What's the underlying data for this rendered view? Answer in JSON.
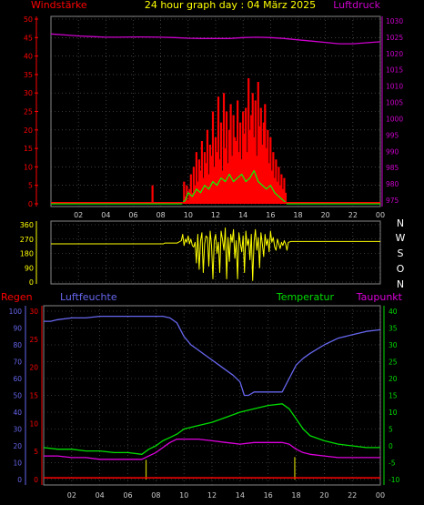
{
  "chart_data": [
    {
      "type": "line",
      "title": "24 hour graph day : 04 März 2025",
      "left_axis_label": "Windstärke",
      "right_axis_label": "Luftdruck",
      "left_ylim": [
        0,
        50
      ],
      "left_ticks": [
        "0",
        "5",
        "10",
        "15",
        "20",
        "25",
        "30",
        "35",
        "40",
        "45",
        "50"
      ],
      "right_ylim": [
        975,
        1030
      ],
      "right_ticks": [
        "975",
        "980",
        "985",
        "990",
        "995",
        "1000",
        "1005",
        "1010",
        "1015",
        "1020",
        "1025",
        "1030"
      ],
      "xlim": [
        0,
        24
      ],
      "x_ticks": [
        "02",
        "04",
        "06",
        "08",
        "10",
        "12",
        "14",
        "16",
        "18",
        "20",
        "22",
        "00"
      ],
      "grid": true,
      "colors": {
        "wind": "#ff0000",
        "gust_mean": "#00ff00",
        "pressure": "#cc00cc",
        "left_axis": "#ff0000",
        "right_axis": "#cc00cc",
        "title": "#ffff00"
      },
      "series": [
        {
          "key": "pressure",
          "axis": "right",
          "x": [
            0,
            1,
            2,
            3,
            4,
            5,
            6,
            7,
            8,
            9,
            10,
            11,
            12,
            13,
            14,
            15,
            16,
            17,
            18,
            19,
            20,
            21,
            22,
            23,
            24
          ],
          "y": [
            1026.0,
            1025.7,
            1025.4,
            1025.2,
            1025.0,
            1025.0,
            1025.1,
            1025.1,
            1025.0,
            1024.9,
            1024.7,
            1024.6,
            1024.6,
            1024.6,
            1024.9,
            1025.0,
            1024.9,
            1024.6,
            1024.2,
            1023.8,
            1023.4,
            1023.0,
            1023.0,
            1023.3,
            1023.6
          ]
        },
        {
          "key": "wind_gust",
          "axis": "left",
          "x": [
            0,
            7.3,
            7.4,
            7.5,
            9.6,
            9.7,
            9.8,
            9.9,
            10.0,
            10.1,
            10.2,
            10.3,
            10.4,
            10.5,
            10.6,
            10.7,
            10.8,
            10.9,
            11.0,
            11.1,
            11.2,
            11.3,
            11.4,
            11.5,
            11.6,
            11.7,
            11.8,
            11.9,
            12.0,
            12.1,
            12.2,
            12.3,
            12.4,
            12.5,
            12.6,
            12.7,
            12.8,
            12.9,
            13.0,
            13.1,
            13.2,
            13.3,
            13.4,
            13.5,
            13.6,
            13.7,
            13.8,
            13.9,
            14.0,
            14.1,
            14.2,
            14.3,
            14.4,
            14.5,
            14.6,
            14.7,
            14.8,
            14.9,
            15.0,
            15.1,
            15.2,
            15.3,
            15.4,
            15.5,
            15.6,
            15.7,
            15.8,
            15.9,
            16.0,
            16.1,
            16.2,
            16.3,
            16.4,
            16.5,
            16.6,
            16.7,
            16.8,
            16.9,
            17.0,
            17.1,
            17.2,
            17.3,
            24
          ],
          "y": [
            0,
            0,
            5,
            0,
            0,
            6,
            2,
            5,
            1,
            4,
            8,
            3,
            10,
            5,
            14,
            6,
            12,
            9,
            17,
            7,
            14,
            11,
            20,
            8,
            16,
            13,
            25,
            10,
            18,
            14,
            29,
            12,
            22,
            9,
            30,
            15,
            25,
            11,
            20,
            27,
            13,
            24,
            18,
            17,
            28,
            14,
            22,
            12,
            25,
            19,
            26,
            14,
            34,
            20,
            24,
            30,
            18,
            28,
            13,
            33,
            21,
            26,
            16,
            22,
            27,
            15,
            20,
            11,
            18,
            9,
            14,
            7,
            12,
            6,
            10,
            5,
            8,
            4,
            7,
            3,
            0,
            0,
            0
          ]
        },
        {
          "key": "wind_mean",
          "axis": "left",
          "x": [
            0,
            9.5,
            9.8,
            10.0,
            10.3,
            10.6,
            10.9,
            11.2,
            11.5,
            11.8,
            12.1,
            12.4,
            12.7,
            13.0,
            13.3,
            13.6,
            13.9,
            14.2,
            14.5,
            14.8,
            15.1,
            15.4,
            15.7,
            16.0,
            16.3,
            16.6,
            16.9,
            17.2,
            24
          ],
          "y": [
            0,
            0,
            1,
            3,
            2,
            4,
            3,
            5,
            4,
            6,
            5,
            7,
            6,
            8,
            6,
            7,
            8,
            6,
            7,
            9,
            6,
            5,
            4,
            5,
            3,
            2,
            1,
            0,
            0
          ]
        },
        {
          "key": "wind_today",
          "axis": "left",
          "x": [
            0,
            24
          ],
          "y": [
            0.3,
            0.3
          ]
        }
      ]
    },
    {
      "type": "line",
      "left_ylim": [
        0,
        360
      ],
      "left_ticks": [
        "0",
        "90",
        "180",
        "270",
        "360"
      ],
      "right_labels": [
        "N",
        "O",
        "S",
        "W",
        "N"
      ],
      "xlim": [
        0,
        24
      ],
      "grid": true,
      "colors": {
        "direction": "#ffff00",
        "axis": "#ffff00"
      },
      "series": [
        {
          "key": "wind_direction",
          "x": [
            0,
            8.2,
            8.3,
            9.2,
            9.5,
            9.6,
            9.7,
            9.8,
            9.9,
            10.0,
            10.1,
            10.2,
            10.3,
            10.4,
            10.5,
            10.6,
            10.7,
            10.8,
            10.9,
            11.0,
            11.1,
            11.2,
            11.3,
            11.4,
            11.5,
            11.6,
            11.7,
            11.8,
            11.9,
            12.0,
            12.1,
            12.2,
            12.3,
            12.4,
            12.5,
            12.6,
            12.7,
            12.8,
            12.9,
            13.0,
            13.1,
            13.2,
            13.3,
            13.4,
            13.5,
            13.6,
            13.7,
            13.8,
            13.9,
            14.0,
            14.1,
            14.2,
            14.3,
            14.4,
            14.5,
            14.6,
            14.7,
            14.8,
            14.9,
            15.0,
            15.1,
            15.2,
            15.3,
            15.4,
            15.5,
            15.6,
            15.7,
            15.8,
            15.9,
            16.0,
            16.1,
            16.2,
            16.3,
            16.4,
            16.5,
            16.6,
            16.7,
            16.8,
            16.9,
            17.0,
            17.1,
            17.2,
            17.3,
            17.5,
            24
          ],
          "y": [
            240,
            240,
            245,
            245,
            260,
            300,
            230,
            270,
            250,
            290,
            240,
            270,
            230,
            220,
            250,
            120,
            300,
            80,
            260,
            310,
            60,
            240,
            290,
            280,
            100,
            320,
            230,
            20,
            260,
            300,
            180,
            250,
            60,
            320,
            270,
            200,
            340,
            20,
            280,
            130,
            300,
            250,
            330,
            150,
            260,
            20,
            310,
            240,
            190,
            290,
            60,
            320,
            230,
            270,
            140,
            300,
            10,
            250,
            330,
            200,
            280,
            90,
            310,
            240,
            160,
            300,
            230,
            270,
            190,
            320,
            250,
            280,
            220,
            200,
            270,
            240,
            210,
            250,
            230,
            260,
            240,
            200,
            250,
            255,
            255
          ]
        }
      ]
    },
    {
      "type": "line",
      "left_axis_labels": [
        "Regen",
        "Luftfeuchte"
      ],
      "right_axis_labels": [
        "Temperatur",
        "Taupunkt"
      ],
      "humidity_ylim": [
        0,
        100
      ],
      "humidity_ticks": [
        "0",
        "10",
        "20",
        "30",
        "40",
        "50",
        "60",
        "70",
        "80",
        "90",
        "100"
      ],
      "rain_ylim": [
        0,
        30
      ],
      "rain_ticks": [
        "0",
        "5",
        "10",
        "15",
        "20",
        "25",
        "30"
      ],
      "temp_ylim": [
        -10,
        40
      ],
      "temp_ticks": [
        "-10",
        "-5",
        "0",
        "5",
        "10",
        "15",
        "20",
        "25",
        "30",
        "35",
        "40"
      ],
      "xlim": [
        0,
        24
      ],
      "x_ticks": [
        "02",
        "04",
        "06",
        "08",
        "10",
        "12",
        "14",
        "16",
        "18",
        "20",
        "22",
        "00"
      ],
      "grid": true,
      "colors": {
        "humidity": "#6666ee",
        "temperature": "#00dd00",
        "dewpoint": "#dd00dd",
        "rain": "#ff0000",
        "rain_rate": "#cccc00",
        "rain_axis": "#ff0000",
        "humidity_axis": "#6666ee",
        "temp_axis": "#00dd00",
        "dew_axis": "#dd00dd"
      },
      "series": [
        {
          "key": "humidity",
          "axis": "humidity",
          "x": [
            0,
            0.5,
            1,
            2,
            3,
            4,
            5,
            6,
            7,
            7.5,
            8,
            8.5,
            9,
            9.5,
            10,
            10.5,
            11,
            11.5,
            12,
            12.5,
            13,
            13.5,
            14,
            14.3,
            14.6,
            15,
            15.5,
            16,
            16.5,
            17,
            17.5,
            18,
            18.5,
            19,
            20,
            21,
            22,
            23,
            24
          ],
          "y": [
            94,
            94,
            95,
            96,
            96,
            97,
            97,
            97,
            97,
            97,
            97,
            97,
            96,
            93,
            85,
            80,
            77,
            74,
            71,
            68,
            65,
            62,
            58,
            50,
            50,
            52,
            52,
            52,
            52,
            52,
            60,
            68,
            72,
            75,
            80,
            84,
            86,
            88,
            89
          ]
        },
        {
          "key": "temperature",
          "axis": "temp",
          "x": [
            0,
            1,
            2,
            3,
            4,
            5,
            6,
            7,
            7.5,
            8,
            8.5,
            9,
            9.5,
            10,
            10.5,
            11,
            12,
            13,
            14,
            15,
            16,
            17,
            17.5,
            18,
            18.5,
            19,
            20,
            21,
            22,
            23,
            24
          ],
          "y": [
            -0.5,
            -1,
            -1,
            -1.5,
            -1.5,
            -2,
            -2,
            -2.5,
            -1,
            0,
            1.5,
            2.5,
            3.5,
            5,
            5.5,
            6,
            7,
            8.5,
            10,
            11,
            12,
            12.5,
            11,
            8,
            5,
            3,
            1.5,
            0.5,
            0,
            -0.5,
            -0.5
          ]
        },
        {
          "key": "dewpoint",
          "axis": "temp",
          "x": [
            0,
            1,
            2,
            3,
            4,
            5,
            6,
            7,
            7.5,
            8,
            8.5,
            9,
            9.5,
            10,
            11,
            12,
            13,
            14,
            15,
            16,
            17,
            17.5,
            18,
            18.5,
            19,
            20,
            21,
            22,
            23,
            24
          ],
          "y": [
            -3,
            -3,
            -3.5,
            -3.5,
            -4,
            -4,
            -4,
            -4,
            -3,
            -2,
            -0.5,
            1,
            2,
            2,
            2,
            1.5,
            1,
            0.5,
            1,
            1,
            1,
            0.5,
            -1,
            -2,
            -2.5,
            -3,
            -3.5,
            -3.5,
            -3.5,
            -3.5
          ]
        },
        {
          "key": "rain_rate",
          "axis": "rain",
          "type": "bar",
          "x": [
            7.3,
            17.9
          ],
          "y": [
            3.5,
            4
          ]
        },
        {
          "key": "rain_total",
          "axis": "rain",
          "x": [
            0,
            24
          ],
          "y": [
            0.3,
            0.3
          ]
        }
      ]
    }
  ]
}
